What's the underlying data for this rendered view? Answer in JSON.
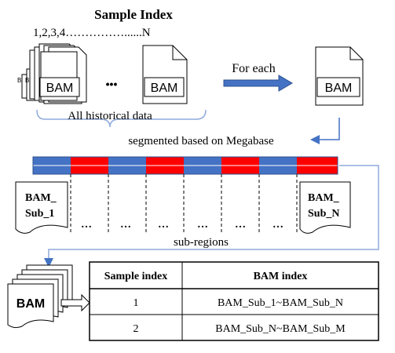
{
  "header": {
    "title": "Sample Index",
    "sequence": "1,2,3,4……………......N"
  },
  "left_stack": {
    "file_label": "BAM",
    "ellipsis": "•••",
    "single_file_label": "BAM",
    "bracket_label": "All historical data"
  },
  "arrow_label": "For each",
  "right_file_label": "BAM",
  "segment_label": "segmented based on Megabase",
  "sub_files": {
    "first": [
      "BAM_",
      "Sub_1"
    ],
    "last": [
      "BAM_",
      "Sub_N"
    ],
    "dots": "…"
  },
  "subregions_label": "sub-regions",
  "bottom_stack_label": "BAM",
  "table": {
    "headers": [
      "Sample index",
      "BAM index"
    ],
    "rows": [
      [
        "1",
        "BAM_Sub_1~BAM_Sub_N"
      ],
      [
        "2",
        "BAM_Sub_N~BAM_Sub_M"
      ]
    ]
  },
  "colors": {
    "blue": "#4472c4",
    "red": "#ff0000",
    "arrow": "#4472c4",
    "line": "#8faadc"
  }
}
